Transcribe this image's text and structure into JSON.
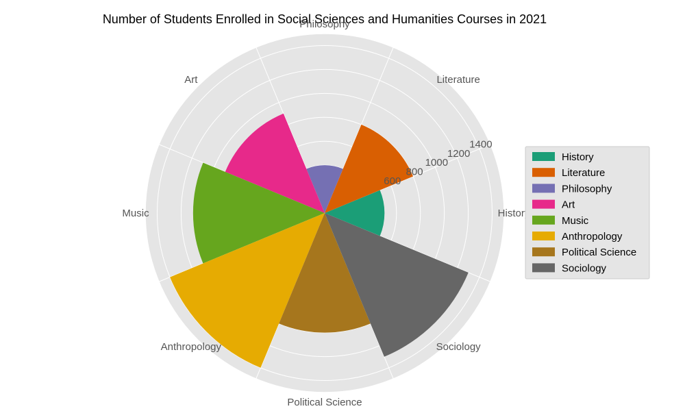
{
  "chart_data": {
    "type": "polar-bar",
    "title": "Number of Students Enrolled in Social Sciences and Humanities Courses in 2021",
    "categories": [
      "History",
      "Literature",
      "Philosophy",
      "Art",
      "Music",
      "Anthropology",
      "Political Science",
      "Sociology"
    ],
    "values": [
      500,
      800,
      400,
      900,
      1100,
      1400,
      1000,
      1300
    ],
    "colors": [
      "#1b9e77",
      "#d95f02",
      "#7570b3",
      "#e7298a",
      "#66a61e",
      "#e6ab02",
      "#a6761d",
      "#666666"
    ],
    "radial_ticks": [
      600,
      800,
      1000,
      1200,
      1400
    ],
    "rlim": [
      0,
      1500
    ],
    "grid": true,
    "legend_position": "right",
    "background": "#e5e5e5"
  }
}
